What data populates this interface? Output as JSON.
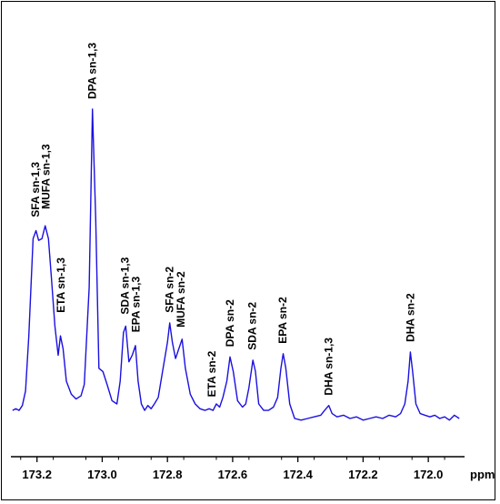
{
  "chart_data": {
    "type": "line",
    "title": "",
    "xlabel": "ppm",
    "ylabel": "",
    "x_reversed": true,
    "xlim": [
      173.28,
      171.9
    ],
    "ylim": [
      0,
      1
    ],
    "grid": false,
    "line_color": "#1a10e0",
    "x_ticks": [
      173.2,
      173.0,
      172.8,
      172.6,
      172.4,
      172.2,
      172.0
    ],
    "x_tick_labels": [
      "173.2",
      "173.0",
      "172.8",
      "172.6",
      "172.4",
      "172.2",
      "172.0"
    ],
    "series": [
      {
        "values": [
          [
            173.275,
            0.07
          ],
          [
            173.265,
            0.075
          ],
          [
            173.255,
            0.07
          ],
          [
            173.245,
            0.085
          ],
          [
            173.235,
            0.13
          ],
          [
            173.225,
            0.3
          ],
          [
            173.212,
            0.6
          ],
          [
            173.203,
            0.625
          ],
          [
            173.195,
            0.595
          ],
          [
            173.185,
            0.6
          ],
          [
            173.175,
            0.64
          ],
          [
            173.165,
            0.6
          ],
          [
            173.155,
            0.47
          ],
          [
            173.145,
            0.33
          ],
          [
            173.135,
            0.24
          ],
          [
            173.128,
            0.3
          ],
          [
            173.12,
            0.26
          ],
          [
            173.11,
            0.16
          ],
          [
            173.095,
            0.12
          ],
          [
            173.08,
            0.105
          ],
          [
            173.065,
            0.115
          ],
          [
            173.055,
            0.15
          ],
          [
            173.04,
            0.45
          ],
          [
            173.03,
            1.0
          ],
          [
            173.02,
            0.66
          ],
          [
            173.01,
            0.2
          ],
          [
            172.998,
            0.19
          ],
          [
            172.985,
            0.15
          ],
          [
            172.97,
            0.1
          ],
          [
            172.955,
            0.09
          ],
          [
            172.945,
            0.16
          ],
          [
            172.935,
            0.31
          ],
          [
            172.928,
            0.33
          ],
          [
            172.918,
            0.22
          ],
          [
            172.908,
            0.24
          ],
          [
            172.898,
            0.27
          ],
          [
            172.89,
            0.16
          ],
          [
            172.88,
            0.09
          ],
          [
            172.87,
            0.07
          ],
          [
            172.86,
            0.085
          ],
          [
            172.85,
            0.075
          ],
          [
            172.84,
            0.09
          ],
          [
            172.828,
            0.11
          ],
          [
            172.815,
            0.19
          ],
          [
            172.8,
            0.28
          ],
          [
            172.793,
            0.34
          ],
          [
            172.785,
            0.28
          ],
          [
            172.775,
            0.23
          ],
          [
            172.765,
            0.26
          ],
          [
            172.755,
            0.29
          ],
          [
            172.745,
            0.2
          ],
          [
            172.73,
            0.12
          ],
          [
            172.715,
            0.09
          ],
          [
            172.7,
            0.075
          ],
          [
            172.685,
            0.07
          ],
          [
            172.672,
            0.075
          ],
          [
            172.66,
            0.07
          ],
          [
            172.65,
            0.09
          ],
          [
            172.64,
            0.08
          ],
          [
            172.63,
            0.11
          ],
          [
            172.618,
            0.16
          ],
          [
            172.608,
            0.235
          ],
          [
            172.598,
            0.19
          ],
          [
            172.585,
            0.1
          ],
          [
            172.57,
            0.08
          ],
          [
            172.56,
            0.09
          ],
          [
            172.55,
            0.14
          ],
          [
            172.538,
            0.225
          ],
          [
            172.53,
            0.19
          ],
          [
            172.52,
            0.09
          ],
          [
            172.505,
            0.07
          ],
          [
            172.49,
            0.07
          ],
          [
            172.475,
            0.08
          ],
          [
            172.462,
            0.11
          ],
          [
            172.452,
            0.2
          ],
          [
            172.445,
            0.245
          ],
          [
            172.437,
            0.2
          ],
          [
            172.425,
            0.09
          ],
          [
            172.41,
            0.045
          ],
          [
            172.39,
            0.04
          ],
          [
            172.37,
            0.045
          ],
          [
            172.35,
            0.05
          ],
          [
            172.33,
            0.055
          ],
          [
            172.318,
            0.07
          ],
          [
            172.305,
            0.085
          ],
          [
            172.295,
            0.06
          ],
          [
            172.28,
            0.05
          ],
          [
            172.26,
            0.055
          ],
          [
            172.24,
            0.045
          ],
          [
            172.22,
            0.05
          ],
          [
            172.2,
            0.04
          ],
          [
            172.18,
            0.045
          ],
          [
            172.16,
            0.05
          ],
          [
            172.14,
            0.045
          ],
          [
            172.12,
            0.055
          ],
          [
            172.1,
            0.05
          ],
          [
            172.085,
            0.06
          ],
          [
            172.072,
            0.09
          ],
          [
            172.062,
            0.16
          ],
          [
            172.055,
            0.25
          ],
          [
            172.048,
            0.19
          ],
          [
            172.038,
            0.09
          ],
          [
            172.025,
            0.06
          ],
          [
            172.01,
            0.055
          ],
          [
            171.995,
            0.05
          ],
          [
            171.98,
            0.055
          ],
          [
            171.965,
            0.045
          ],
          [
            171.95,
            0.05
          ],
          [
            171.935,
            0.04
          ],
          [
            171.92,
            0.055
          ],
          [
            171.905,
            0.045
          ]
        ]
      }
    ],
    "peak_labels": [
      {
        "text": "SFA sn-1,3",
        "ppm": 173.205,
        "level": 0.655
      },
      {
        "text": "MUFA sn-1,3",
        "ppm": 173.172,
        "level": 0.68
      },
      {
        "text": "DPA sn-1,3",
        "ppm": 173.03,
        "level": 1.02
      },
      {
        "text": "ETA sn-1,3",
        "ppm": 173.127,
        "level": 0.36
      },
      {
        "text": "SDA sn-1,3",
        "ppm": 172.93,
        "level": 0.355
      },
      {
        "text": "EPA sn-1,3",
        "ppm": 172.897,
        "level": 0.3
      },
      {
        "text": "SFA sn-2",
        "ppm": 172.793,
        "level": 0.36
      },
      {
        "text": "MUFA sn-2",
        "ppm": 172.758,
        "level": 0.315
      },
      {
        "text": "ETA sn-2",
        "ppm": 172.664,
        "level": 0.1
      },
      {
        "text": "DPA sn-2",
        "ppm": 172.608,
        "level": 0.255
      },
      {
        "text": "SDA sn-2",
        "ppm": 172.54,
        "level": 0.245
      },
      {
        "text": "EPA sn-2",
        "ppm": 172.447,
        "level": 0.265
      },
      {
        "text": "DHA sn-1,3",
        "ppm": 172.305,
        "level": 0.105
      },
      {
        "text": "DHA sn-2",
        "ppm": 172.055,
        "level": 0.27
      }
    ]
  }
}
